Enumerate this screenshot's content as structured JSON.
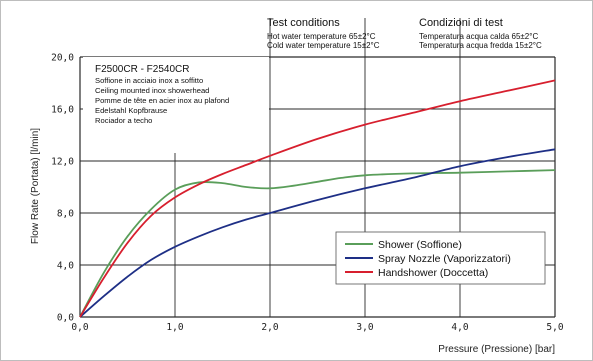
{
  "chart_data": {
    "type": "line",
    "title": "",
    "xlabel": "Pressure (Pressione) [bar]",
    "ylabel": "Flow Rate (Portata) [l/min]",
    "xlim": [
      0,
      5
    ],
    "ylim": [
      0,
      20
    ],
    "x_ticks": [
      "0,0",
      "1,0",
      "2,0",
      "3,0",
      "4,0",
      "5,0"
    ],
    "y_ticks": [
      "0,0",
      "4,0",
      "8,0",
      "12,0",
      "16,0",
      "20,0"
    ],
    "grid": true,
    "legend_position": "bottom-right",
    "test_conditions": {
      "en": {
        "title": "Test conditions",
        "lines": [
          "Hot water temperature  65±2°C",
          "Cold water temperature  15±2°C"
        ]
      },
      "it": {
        "title": "Condizioni di test",
        "lines": [
          "Temperatura acqua calda   65±2°C",
          "Temperatura acqua fredda  15±2°C"
        ]
      }
    },
    "product": {
      "title": "F2500CR - F2540CR",
      "lines": [
        "Soffione in acciaio inox a soffitto",
        "Ceiling mounted inox showerhead",
        "Pomme de tête en acier inox au plafond",
        "Edelstahl Kopfbrause",
        "Rociador a techo"
      ]
    },
    "series": [
      {
        "name": "Shower (Soffione)",
        "color": "#5a9e5a",
        "x": [
          0,
          0.25,
          0.5,
          0.75,
          1.0,
          1.25,
          1.5,
          1.75,
          2.0,
          2.25,
          2.5,
          2.75,
          3.0,
          3.5,
          4.0,
          4.5,
          5.0
        ],
        "y": [
          0,
          3.4,
          6.2,
          8.3,
          9.8,
          10.35,
          10.3,
          10.0,
          9.9,
          10.1,
          10.4,
          10.7,
          10.9,
          11.05,
          11.1,
          11.2,
          11.3
        ]
      },
      {
        "name": "Spray Nozzle (Vaporizzatori)",
        "color": "#1e2f86",
        "x": [
          0,
          0.25,
          0.5,
          0.75,
          1.0,
          1.25,
          1.5,
          1.75,
          2.0,
          2.5,
          3.0,
          3.5,
          4.0,
          4.5,
          5.0
        ],
        "y": [
          0,
          1.6,
          3.1,
          4.4,
          5.4,
          6.2,
          6.9,
          7.5,
          8.0,
          9.0,
          9.9,
          10.7,
          11.6,
          12.3,
          12.9
        ]
      },
      {
        "name": "Handshower (Doccetta)",
        "color": "#d71f2e",
        "x": [
          0,
          0.25,
          0.5,
          0.75,
          1.0,
          1.25,
          1.5,
          1.75,
          2.0,
          2.5,
          3.0,
          3.5,
          4.0,
          4.5,
          5.0
        ],
        "y": [
          0,
          3.0,
          5.7,
          7.8,
          9.2,
          10.2,
          11.0,
          11.7,
          12.4,
          13.7,
          14.8,
          15.7,
          16.6,
          17.4,
          18.2
        ]
      }
    ]
  }
}
